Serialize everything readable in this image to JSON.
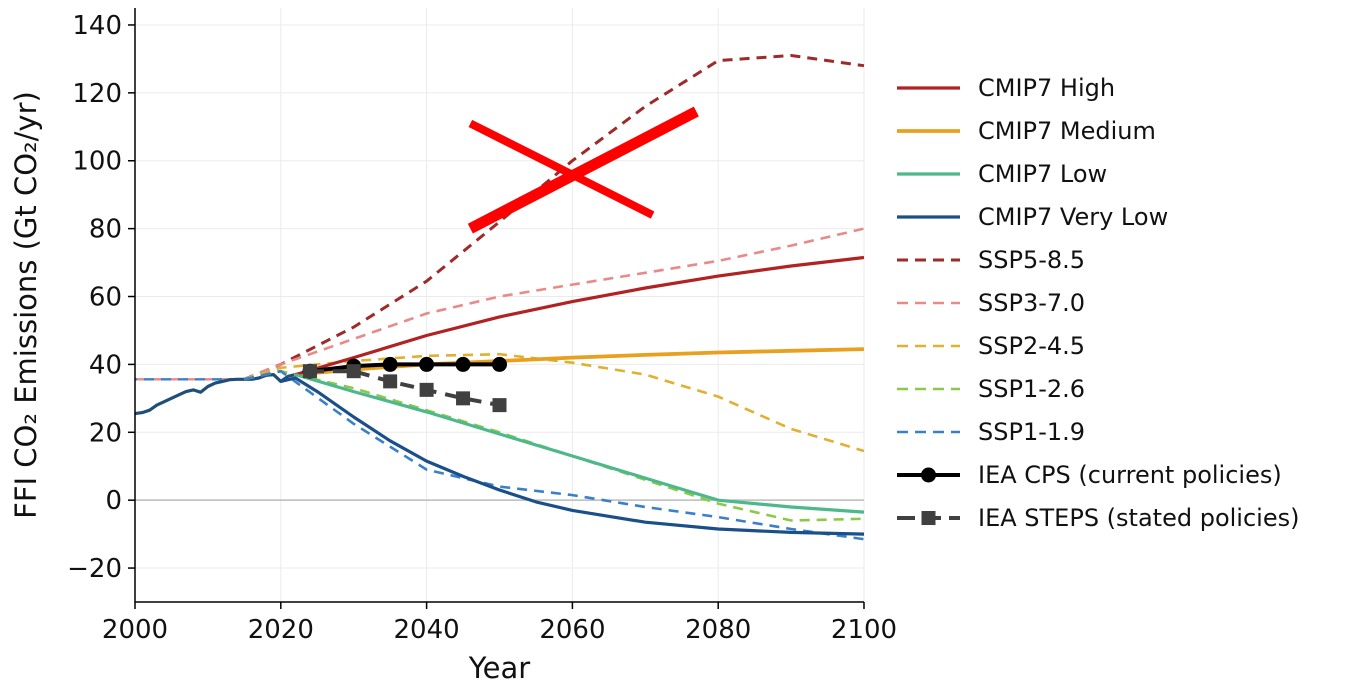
{
  "chart_data": {
    "type": "line",
    "title": "",
    "xlabel": "Year",
    "ylabel": "FFI CO₂ Emissions (Gt CO₂/yr)",
    "xlim": [
      2000,
      2100
    ],
    "ylim": [
      -30,
      145
    ],
    "xticks": [
      2000,
      2020,
      2040,
      2060,
      2080,
      2100
    ],
    "yticks": [
      -20,
      0,
      20,
      40,
      60,
      80,
      100,
      120,
      140
    ],
    "grid": true,
    "legend_position": "right",
    "historical": {
      "color": "#1f4e79",
      "x": [
        2000,
        2001,
        2002,
        2003,
        2004,
        2005,
        2006,
        2007,
        2008,
        2009,
        2010,
        2011,
        2012,
        2013,
        2014,
        2015,
        2016,
        2017,
        2018,
        2019,
        2020,
        2021,
        2022
      ],
      "y": [
        25.5,
        25.8,
        26.5,
        28,
        29,
        30,
        31,
        32,
        32.5,
        31.8,
        33.5,
        34.5,
        35,
        35.5,
        35.6,
        35.6,
        35.6,
        36,
        36.8,
        37,
        35,
        36.5,
        37
      ]
    },
    "series": [
      {
        "name": "CMIP7 High",
        "color": "#b22222",
        "style": "solid",
        "width": 3.2,
        "x": [
          2022,
          2030,
          2040,
          2050,
          2060,
          2070,
          2080,
          2090,
          2100
        ],
        "y": [
          37,
          42,
          48.5,
          54,
          58.5,
          62.5,
          66,
          69,
          71.5
        ]
      },
      {
        "name": "CMIP7 Medium",
        "color": "#e8a020",
        "style": "solid",
        "width": 3.8,
        "x": [
          2022,
          2030,
          2040,
          2050,
          2060,
          2070,
          2080,
          2090,
          2100
        ],
        "y": [
          37,
          38.5,
          40,
          41,
          42,
          42.8,
          43.5,
          44,
          44.5
        ]
      },
      {
        "name": "CMIP7 Low",
        "color": "#4db88a",
        "style": "solid",
        "width": 3.2,
        "x": [
          2022,
          2030,
          2040,
          2050,
          2060,
          2070,
          2080,
          2090,
          2100
        ],
        "y": [
          37,
          32,
          26,
          19.5,
          13,
          6.5,
          0,
          -2,
          -3.5
        ]
      },
      {
        "name": "CMIP7 Very Low",
        "color": "#1a4f8a",
        "style": "solid",
        "width": 3.2,
        "x": [
          2020,
          2022,
          2025,
          2030,
          2035,
          2040,
          2045,
          2050,
          2055,
          2060,
          2070,
          2080,
          2090,
          2100
        ],
        "y": [
          35,
          36,
          32,
          24.5,
          17.5,
          11.5,
          7,
          3,
          -0.5,
          -3,
          -6.5,
          -8.5,
          -9.5,
          -10
        ]
      },
      {
        "name": "SSP5-8.5",
        "color": "#9e2a2a",
        "style": "dashed",
        "width": 3,
        "x": [
          2015,
          2020,
          2030,
          2040,
          2050,
          2060,
          2070,
          2080,
          2090,
          2100
        ],
        "y": [
          35.6,
          40,
          51,
          64.5,
          82,
          100,
          116,
          129.5,
          131,
          128
        ]
      },
      {
        "name": "SSP3-7.0",
        "color": "#e88a8a",
        "style": "dashed",
        "width": 2.6,
        "x": [
          2015,
          2020,
          2030,
          2040,
          2050,
          2060,
          2070,
          2080,
          2090,
          2100
        ],
        "y": [
          35.6,
          40,
          47.5,
          55,
          60,
          63.5,
          67,
          70.5,
          75,
          80
        ]
      },
      {
        "name": "SSP2-4.5",
        "color": "#e0b030",
        "style": "dashed",
        "width": 2.6,
        "x": [
          2015,
          2020,
          2030,
          2040,
          2050,
          2060,
          2070,
          2080,
          2090,
          2100
        ],
        "y": [
          35.6,
          39,
          41,
          42.5,
          43,
          40.5,
          37,
          30.5,
          21,
          14.5
        ]
      },
      {
        "name": "SSP1-2.6",
        "color": "#8cc84b",
        "style": "dashed",
        "width": 2.6,
        "x": [
          2015,
          2020,
          2030,
          2040,
          2050,
          2060,
          2070,
          2080,
          2090,
          2100
        ],
        "y": [
          35.6,
          38,
          33,
          26.5,
          20,
          13,
          6,
          -1,
          -6,
          -5.5
        ]
      },
      {
        "name": "SSP1-1.9",
        "color": "#3a80c8",
        "style": "dashed",
        "width": 2.6,
        "x": [
          2015,
          2020,
          2030,
          2040,
          2050,
          2060,
          2070,
          2080,
          2090,
          2100
        ],
        "y": [
          35.6,
          38,
          22.5,
          9,
          4,
          1.5,
          -2,
          -5,
          -8.5,
          -11.5
        ]
      },
      {
        "name": "IEA CPS (current policies)",
        "color": "#000000",
        "style": "solid",
        "width": 4,
        "marker": "circle",
        "x": [
          2024,
          2030,
          2035,
          2040,
          2045,
          2050
        ],
        "y": [
          38,
          39.5,
          40,
          40,
          40,
          40
        ]
      },
      {
        "name": "IEA STEPS (stated policies)",
        "color": "#404040",
        "style": "dashed",
        "width": 4,
        "marker": "square",
        "x": [
          2024,
          2030,
          2035,
          2040,
          2045,
          2050
        ],
        "y": [
          38,
          38,
          35,
          32.5,
          30,
          28
        ]
      }
    ],
    "baseline": {
      "x": [
        2000,
        2015
      ],
      "y": [
        35.6,
        35.6
      ],
      "colors": [
        "#e88a8a",
        "#3a80c8"
      ]
    },
    "annotation": {
      "type": "red-cross",
      "color": "#ff0000",
      "stroke1": {
        "from": [
          2046,
          111
        ],
        "to": [
          2071,
          84
        ]
      },
      "stroke2": {
        "from": [
          2046,
          80
        ],
        "to": [
          2077,
          114.5
        ]
      }
    }
  }
}
